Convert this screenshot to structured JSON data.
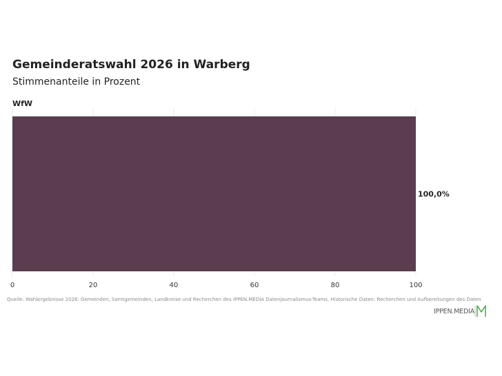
{
  "header": {
    "title": "Gemeinderatswahl 2026 in Warberg",
    "subtitle": "Stimmenanteile in Prozent"
  },
  "chart_data": {
    "type": "bar",
    "orientation": "horizontal",
    "categories": [
      "WfW"
    ],
    "values": [
      100.0
    ],
    "value_labels": [
      "100,0%"
    ],
    "xlim": [
      0,
      100
    ],
    "xticks": [
      0,
      20,
      40,
      60,
      80,
      100
    ],
    "grid": true,
    "colors": {
      "bar": "#5a3d4f",
      "grid": "#ebebeb"
    }
  },
  "footer": {
    "source": "Quelle: Wahlergebnisse 2026: Gemeinden, Samtgemeinden, Landkreise und Recherchen des IPPEN.MEDIA Datenjournalismus-Teams. Historische Daten: Recherchen und Aufbereitungen des Daten",
    "logo_text": "IPPEN.MEDIA",
    "logo_color": "#4caf50"
  }
}
